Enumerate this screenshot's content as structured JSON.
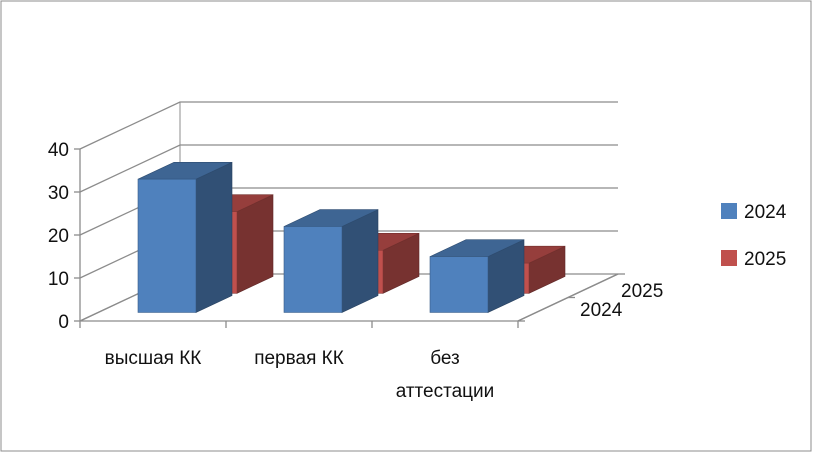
{
  "chart_data": {
    "type": "bar",
    "categories": [
      "высшая КК",
      "первая КК",
      "без аттестации"
    ],
    "series": [
      {
        "name": "2024",
        "values": [
          31,
          20,
          13
        ],
        "color": "#4F81BD"
      },
      {
        "name": "2025",
        "values": [
          19,
          10,
          7
        ],
        "color": "#C0504D"
      }
    ],
    "yticks": [
      "0",
      "10",
      "20",
      "30",
      "40"
    ],
    "depth_labels": [
      "2024",
      "2025"
    ],
    "ylim": [
      0,
      40
    ],
    "grid": true,
    "legend_position": "right",
    "title": "",
    "xlabel": "",
    "ylabel": ""
  }
}
